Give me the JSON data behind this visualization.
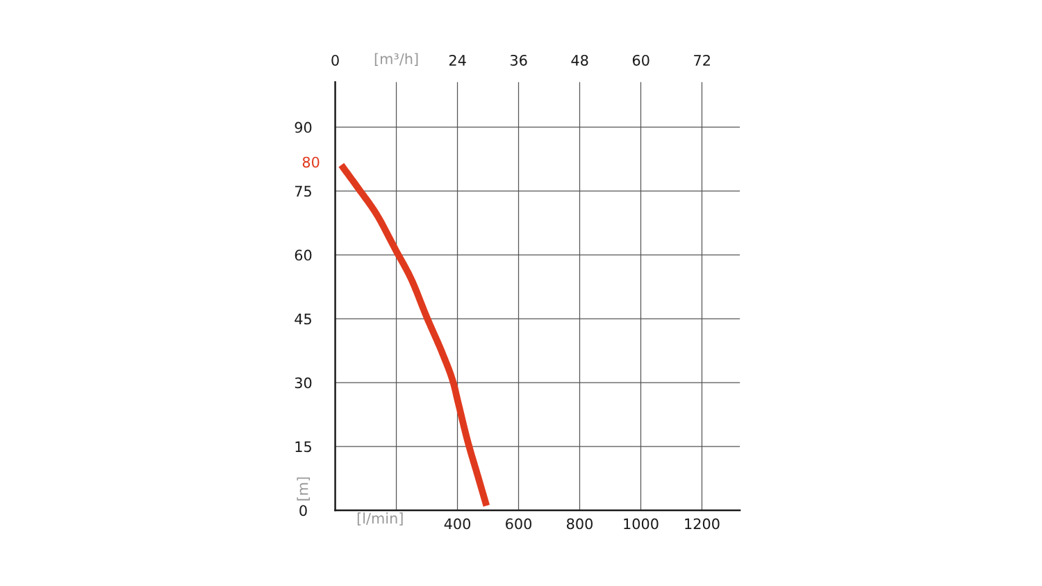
{
  "chart_data": {
    "type": "line",
    "xlabel": "[l/min]",
    "x2label": "[m³/h]",
    "ylabel": "[m]",
    "series": [
      {
        "color": "#e03a1e",
        "x": [
          20,
          77,
          134,
          199,
          247,
          300,
          353,
          386,
          402,
          434,
          467,
          495
        ],
        "values": [
          81.1,
          75.5,
          69.7,
          61,
          54.6,
          45.3,
          36.5,
          30.1,
          25.4,
          16.1,
          8,
          1.1
        ]
      }
    ],
    "xlim": [
      0,
      1324
    ],
    "xticks": [
      {
        "value": 200,
        "label": null
      },
      400,
      600,
      800,
      1000,
      1200
    ],
    "x2lim": [
      0,
      79.4
    ],
    "x2ticks": [
      0,
      {
        "value": 12,
        "label": null
      },
      24,
      36,
      48,
      60,
      72
    ],
    "ylim": [
      0,
      100.6
    ],
    "yticks": [
      0,
      15,
      30,
      45,
      60,
      75,
      90
    ],
    "annotations": [
      "80"
    ],
    "grid": true,
    "marker": "none",
    "line_style": "solid"
  }
}
